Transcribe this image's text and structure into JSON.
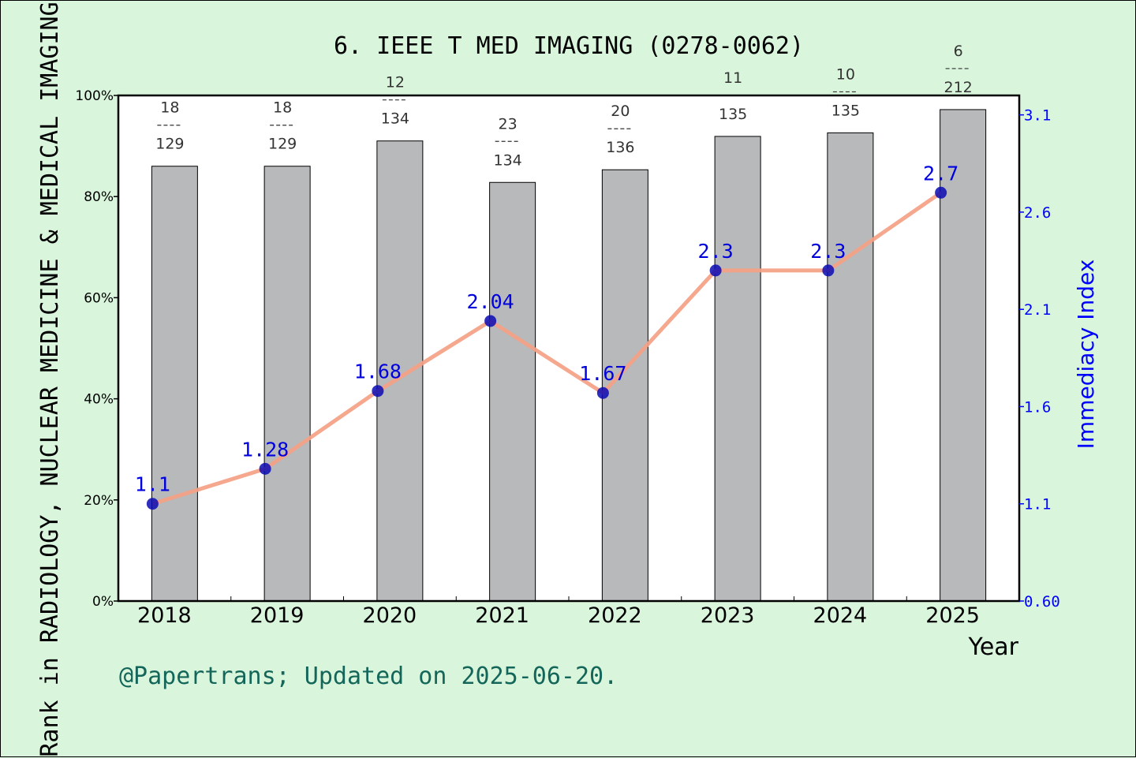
{
  "chart_data": {
    "type": "bar",
    "title": "6. IEEE T MED IMAGING (0278-0062)",
    "xlabel": "Year",
    "ylabel": "Rank in RADIOLOGY, NUCLEAR MEDICINE & MEDICAL IMAGING",
    "y2label": "Immediacy Index",
    "categories": [
      "2018",
      "2019",
      "2020",
      "2021",
      "2022",
      "2023",
      "2024",
      "2025"
    ],
    "ylim": [
      0,
      100
    ],
    "y_ticks": [
      "0%",
      "20%",
      "40%",
      "60%",
      "80%",
      "100%"
    ],
    "y2lim": [
      0.6,
      3.2
    ],
    "y2_ticks": [
      "0.60",
      "1.1",
      "1.6",
      "2.1",
      "2.6",
      "3.1"
    ],
    "series": [
      {
        "type": "bar",
        "values": [
          86.0,
          86.0,
          91.0,
          82.8,
          85.3,
          91.9,
          92.6,
          97.2
        ],
        "rank_labels": [
          {
            "rank": "18",
            "total": "129"
          },
          {
            "rank": "18",
            "total": "129"
          },
          {
            "rank": "12",
            "total": "134"
          },
          {
            "rank": "23",
            "total": "134"
          },
          {
            "rank": "20",
            "total": "136"
          },
          {
            "rank": "11",
            "total": "135"
          },
          {
            "rank": "10",
            "total": "135"
          },
          {
            "rank": "6",
            "total": "212"
          }
        ]
      },
      {
        "type": "line",
        "axis": "right",
        "values": [
          1.1,
          1.28,
          1.68,
          2.04,
          1.67,
          2.3,
          2.3,
          2.7
        ],
        "labels": [
          "1.1",
          "1.28",
          "1.68",
          "2.04",
          "1.67",
          "2.3",
          "2.3",
          "2.7"
        ]
      }
    ],
    "grid": false,
    "colors": {
      "background": "#d9f6dc",
      "plot_background": "#ffffff",
      "bar": "#b8b9bb",
      "line": "#f4a184",
      "marker": "#0a0ab4",
      "right_axis": "#0000ff",
      "footer": "#14665a"
    }
  },
  "footer": "@Papertrans; Updated on 2025-06-20."
}
